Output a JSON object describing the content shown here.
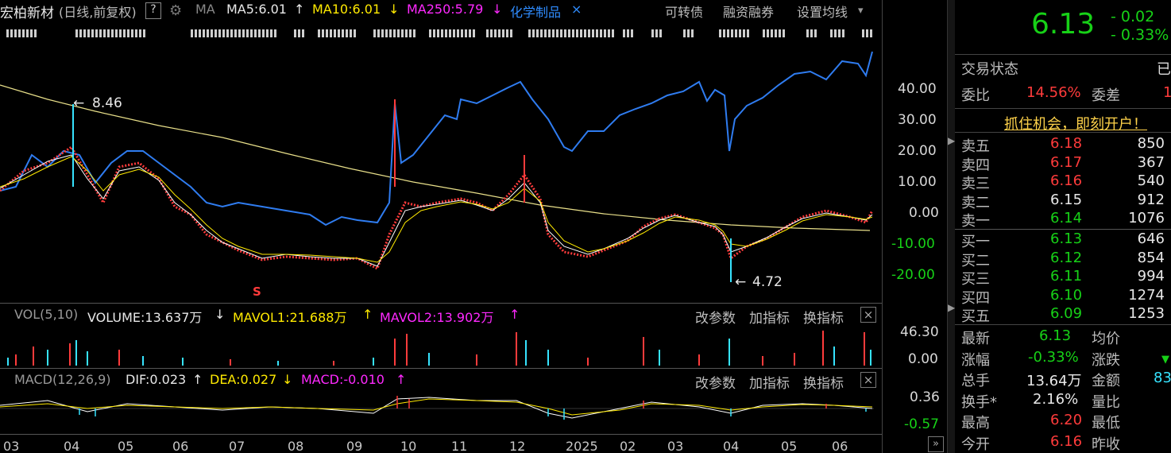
{
  "header": {
    "stock_name": "宏柏新材",
    "chart_mode": "(日线,前复权)",
    "help": "?",
    "ma_label": "MA",
    "ma5": "MA5:6.01",
    "ma5_arrow": "↑",
    "ma10": "MA10:6.01",
    "ma10_arrow": "↓",
    "ma250": "MA250:5.79",
    "ma250_arrow": "↓",
    "sector": "化学制品",
    "sector_close": "×",
    "link_convertible": "可转债",
    "link_margin": "融资融券",
    "link_set_ma": "设置均线",
    "dropdown": "▾"
  },
  "price_axis": [
    "40.00",
    "30.00",
    "20.00",
    "10.00",
    "0.00",
    "-10.00",
    "-20.00"
  ],
  "annotations": {
    "high": "8.46",
    "low": "4.72",
    "s_marker": "S"
  },
  "vol_panel": {
    "title": "VOL(5,10)",
    "volume": "VOLUME:13.637万",
    "volume_arrow": "↓",
    "mavol1": "MAVOL1:21.688万",
    "mavol1_arrow": "↑",
    "mavol2": "MAVOL2:13.902万",
    "mavol2_arrow": "↑",
    "axis_top": "46.30",
    "axis_bottom": "0.00",
    "btn_params": "改参数",
    "btn_add": "加指标",
    "btn_switch": "换指标",
    "close": "×"
  },
  "macd_panel": {
    "title": "MACD(12,26,9)",
    "dif": "DIF:0.023",
    "dif_arrow": "↑",
    "dea": "DEA:0.027",
    "dea_arrow": "↓",
    "macd": "MACD:-0.010",
    "macd_arrow": "↑",
    "axis_top": "0.36",
    "axis_bottom": "-0.57",
    "btn_params": "改参数",
    "btn_add": "加指标",
    "btn_switch": "换指标",
    "close": "×"
  },
  "x_axis": [
    "03",
    "04",
    "05",
    "06",
    "07",
    "08",
    "09",
    "10",
    "11",
    "12",
    "2025",
    "02",
    "03",
    "04",
    "05",
    "06"
  ],
  "quote": {
    "price": "6.13",
    "change": "- 0.02",
    "change_pct": "- 0.33%",
    "status_label": "交易状态",
    "status_value": "已",
    "weibi_label": "委比",
    "weibi_value": "14.56%",
    "weicha_label": "委差",
    "weicha_value": "1",
    "banner": "抓住机会，即刻开户！",
    "asks": [
      {
        "label": "卖五",
        "price": "6.18",
        "vol": "850"
      },
      {
        "label": "卖四",
        "price": "6.17",
        "vol": "367"
      },
      {
        "label": "卖三",
        "price": "6.16",
        "vol": "540"
      },
      {
        "label": "卖二",
        "price": "6.15",
        "vol": "912"
      },
      {
        "label": "卖一",
        "price": "6.14",
        "vol": "1076"
      }
    ],
    "bids": [
      {
        "label": "买一",
        "price": "6.13",
        "vol": "646"
      },
      {
        "label": "买二",
        "price": "6.12",
        "vol": "854"
      },
      {
        "label": "买三",
        "price": "6.11",
        "vol": "994"
      },
      {
        "label": "买四",
        "price": "6.10",
        "vol": "1274"
      },
      {
        "label": "买五",
        "price": "6.09",
        "vol": "1253"
      }
    ],
    "stats": [
      {
        "l1": "最新",
        "v1": "6.13",
        "l2": "均价",
        "v2": ""
      },
      {
        "l1": "涨幅",
        "v1": "-0.33%",
        "l2": "涨跌",
        "v2": "▼"
      },
      {
        "l1": "总手",
        "v1": "13.64万",
        "l2": "金额",
        "v2": "83"
      },
      {
        "l1": "换手*",
        "v1": "2.16%",
        "l2": "量比",
        "v2": ""
      },
      {
        "l1": "最高",
        "v1": "6.20",
        "l2": "最低",
        "v2": ""
      },
      {
        "l1": "今开",
        "v1": "6.16",
        "l2": "昨收",
        "v2": ""
      }
    ]
  },
  "icons": {
    "gear": "gear-icon",
    "collapse": "collapse-arrow-icon",
    "scroll": "scroll-right-icon"
  },
  "colors": {
    "up": "#ff3b3b",
    "down": "#17d117",
    "ma5": "#ffffff",
    "ma10": "#ffea00",
    "ma250": "#ff29ff",
    "sector": "#2f8cff"
  }
}
